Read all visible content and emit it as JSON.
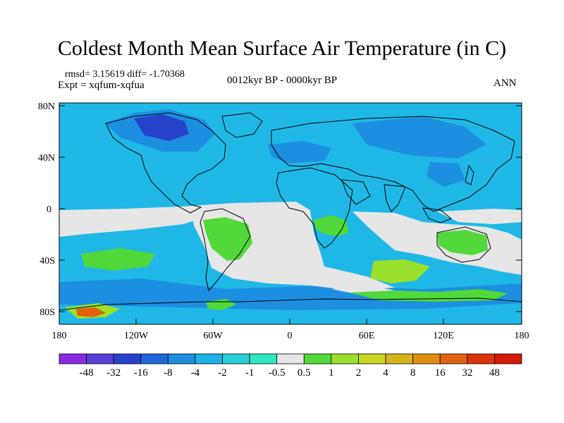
{
  "title": "Coldest Month Mean Surface Air Temperature (in C)",
  "stats_line": "rmsd= 3.15619 diff= -1.70368",
  "experiment_line": "Expt = xqfum-xqfua",
  "period": "0012kyr BP - 0000kyr BP",
  "season": "ANN",
  "lat_ticks": [
    "80N",
    "40N",
    "0",
    "40S",
    "80S"
  ],
  "lon_ticks": [
    "180",
    "120W",
    "60W",
    "0",
    "60E",
    "120E",
    "180"
  ],
  "colorbar": {
    "labels": [
      "-48",
      "-32",
      "-16",
      "-8",
      "-4",
      "-2",
      "-1",
      "-0.5",
      "0.5",
      "1",
      "2",
      "4",
      "8",
      "16",
      "32",
      "48"
    ],
    "colors": [
      "#8a2be2",
      "#5a3fd6",
      "#2743cc",
      "#1f66d8",
      "#1c8fe0",
      "#1fb2e6",
      "#27d0d8",
      "#2ee8c0",
      "#e6e6e6",
      "#52d83a",
      "#9be02c",
      "#c9d824",
      "#d6b419",
      "#e08e14",
      "#e0620f",
      "#dc330b",
      "#d41a08"
    ]
  },
  "map_colors": {
    "background": "#1fb8e6",
    "neutral": "#e6e6e6",
    "warm1": "#52d83a",
    "warm2": "#9be02c",
    "cool2": "#1c8fe0",
    "cool3": "#2743cc",
    "hot": "#e0620f",
    "coast": "#000000"
  }
}
